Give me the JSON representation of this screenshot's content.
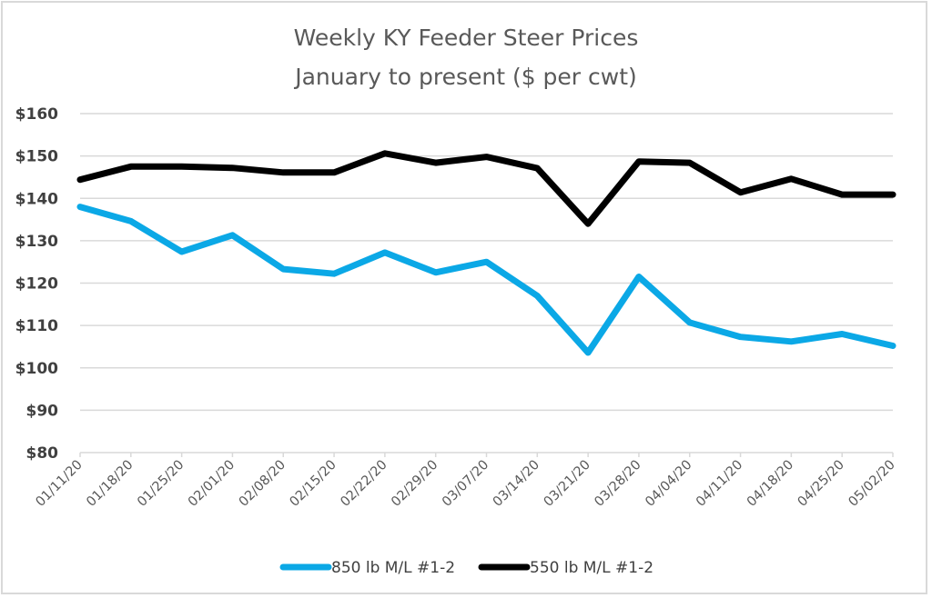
{
  "chart_data": {
    "type": "line",
    "title": "Weekly KY Feeder Steer Prices",
    "subtitle": "January to present ($ per cwt)",
    "xlabel": "",
    "ylabel": "",
    "ylim": [
      80,
      160
    ],
    "ytick_step": 10,
    "ytick_labels": [
      "$80",
      "$90",
      "$100",
      "$110",
      "$120",
      "$130",
      "$140",
      "$150",
      "$160"
    ],
    "grid": true,
    "legend_position": "bottom",
    "categories": [
      "01/11/20",
      "01/18/20",
      "01/25/20",
      "02/01/20",
      "02/08/20",
      "02/15/20",
      "02/22/20",
      "02/29/20",
      "03/07/20",
      "03/14/20",
      "03/21/20",
      "03/28/20",
      "04/04/20",
      "04/11/20",
      "04/18/20",
      "04/25/20",
      "05/02/20"
    ],
    "series": [
      {
        "name": "850 lb M/L #1-2",
        "color": "#0BA8E6",
        "values": [
          138.0,
          134.6,
          127.4,
          131.3,
          123.3,
          122.2,
          127.2,
          122.5,
          125.0,
          117.0,
          103.6,
          121.5,
          110.7,
          107.3,
          106.2,
          108.0,
          105.2
        ]
      },
      {
        "name": "550 lb M/L #1-2",
        "color": "#000000",
        "values": [
          144.4,
          147.5,
          147.5,
          147.2,
          146.1,
          146.1,
          150.6,
          148.4,
          149.8,
          147.1,
          134.0,
          148.7,
          148.4,
          141.4,
          144.6,
          140.9,
          140.9
        ]
      }
    ]
  }
}
